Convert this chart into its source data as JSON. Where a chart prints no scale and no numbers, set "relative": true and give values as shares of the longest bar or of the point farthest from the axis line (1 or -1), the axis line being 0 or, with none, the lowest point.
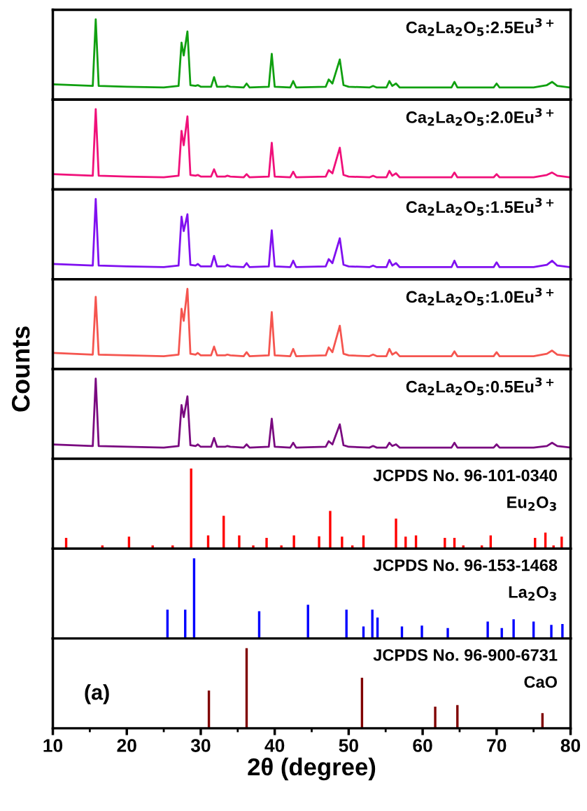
{
  "chart_data": [
    {
      "type": "line",
      "relative": true,
      "xlim": [
        10,
        80
      ],
      "tick_labels": false,
      "annotations": [
        "Ca$_{2}$La$_{2}$O$_{5}$:2.5Eu$^{3+}$"
      ],
      "x": [
        10,
        15.4,
        15.8,
        16.2,
        20,
        25,
        27.0,
        27.4,
        27.7,
        28.2,
        28.6,
        29.3,
        29.6,
        30,
        31.4,
        31.8,
        32.2,
        33.3,
        33.6,
        34,
        35.8,
        36.2,
        36.6,
        39.2,
        39.6,
        40.0,
        42.1,
        42.5,
        42.9,
        46.9,
        47.3,
        47.8,
        48.8,
        49.3,
        50,
        52.8,
        53.3,
        53.8,
        55.1,
        55.5,
        55.9,
        56.4,
        56.9,
        60,
        63.9,
        64.3,
        64.7,
        69.6,
        70.0,
        70.4,
        75,
        76.8,
        77.5,
        78.2,
        80
      ],
      "series": [
        {
          "color": "#10a010",
          "values": [
            0.19,
            0.17,
            1.0,
            0.17,
            0.16,
            0.15,
            0.17,
            0.71,
            0.55,
            0.85,
            0.18,
            0.17,
            0.18,
            0.16,
            0.16,
            0.28,
            0.16,
            0.16,
            0.17,
            0.16,
            0.15,
            0.2,
            0.15,
            0.16,
            0.57,
            0.16,
            0.15,
            0.23,
            0.15,
            0.16,
            0.25,
            0.2,
            0.5,
            0.18,
            0.16,
            0.15,
            0.17,
            0.15,
            0.15,
            0.23,
            0.17,
            0.2,
            0.15,
            0.15,
            0.15,
            0.22,
            0.15,
            0.15,
            0.2,
            0.15,
            0.15,
            0.18,
            0.22,
            0.17,
            0.15
          ]
        }
      ]
    },
    {
      "type": "line",
      "relative": true,
      "xlim": [
        10,
        80
      ],
      "tick_labels": false,
      "annotations": [
        "Ca$_{2}$La$_{2}$O$_{5}$:2.0Eu$^{3+}$"
      ],
      "x": [
        10,
        15.4,
        15.8,
        16.2,
        20,
        25,
        27.0,
        27.4,
        27.7,
        28.2,
        28.6,
        29.3,
        29.6,
        30,
        31.4,
        31.8,
        32.2,
        33.3,
        33.6,
        34,
        35.8,
        36.2,
        36.6,
        39.2,
        39.6,
        40.0,
        42.1,
        42.5,
        42.9,
        46.9,
        47.3,
        47.8,
        48.8,
        49.3,
        50,
        52.8,
        53.3,
        53.8,
        55.1,
        55.5,
        55.9,
        56.4,
        56.9,
        60,
        63.9,
        64.3,
        64.7,
        69.6,
        70.0,
        70.4,
        75,
        76.8,
        77.5,
        78.2,
        80
      ],
      "series": [
        {
          "color": "#f0107a",
          "values": [
            0.19,
            0.17,
            1.0,
            0.17,
            0.16,
            0.15,
            0.17,
            0.73,
            0.55,
            0.91,
            0.18,
            0.17,
            0.18,
            0.16,
            0.16,
            0.25,
            0.16,
            0.16,
            0.17,
            0.16,
            0.15,
            0.19,
            0.15,
            0.16,
            0.58,
            0.16,
            0.15,
            0.22,
            0.15,
            0.16,
            0.24,
            0.2,
            0.52,
            0.18,
            0.16,
            0.15,
            0.17,
            0.15,
            0.15,
            0.23,
            0.17,
            0.2,
            0.15,
            0.15,
            0.15,
            0.21,
            0.15,
            0.15,
            0.19,
            0.15,
            0.15,
            0.18,
            0.21,
            0.17,
            0.15
          ]
        }
      ]
    },
    {
      "type": "line",
      "relative": true,
      "xlim": [
        10,
        80
      ],
      "tick_labels": false,
      "annotations": [
        "Ca$_{2}$La$_{2}$O$_{5}$:1.5Eu$^{3+}$"
      ],
      "x": [
        10,
        15.4,
        15.8,
        16.2,
        20,
        25,
        27.0,
        27.4,
        27.7,
        28.2,
        28.6,
        29.3,
        29.6,
        30,
        31.4,
        31.8,
        32.2,
        33.3,
        33.6,
        34,
        35.8,
        36.2,
        36.6,
        39.2,
        39.6,
        40.0,
        42.1,
        42.5,
        42.9,
        46.9,
        47.3,
        47.8,
        48.8,
        49.3,
        50,
        52.8,
        53.3,
        53.8,
        55.1,
        55.5,
        55.9,
        56.4,
        56.9,
        60,
        63.9,
        64.3,
        64.7,
        69.6,
        70.0,
        70.4,
        75,
        76.8,
        77.5,
        78.2,
        80
      ],
      "series": [
        {
          "color": "#8010f0",
          "values": [
            0.19,
            0.17,
            1.0,
            0.17,
            0.16,
            0.15,
            0.17,
            0.78,
            0.6,
            0.81,
            0.18,
            0.17,
            0.19,
            0.16,
            0.16,
            0.29,
            0.16,
            0.16,
            0.18,
            0.16,
            0.15,
            0.2,
            0.15,
            0.16,
            0.61,
            0.16,
            0.15,
            0.23,
            0.15,
            0.16,
            0.25,
            0.2,
            0.51,
            0.18,
            0.16,
            0.15,
            0.17,
            0.15,
            0.15,
            0.24,
            0.17,
            0.2,
            0.15,
            0.15,
            0.15,
            0.23,
            0.15,
            0.15,
            0.21,
            0.15,
            0.15,
            0.18,
            0.23,
            0.17,
            0.15
          ]
        }
      ]
    },
    {
      "type": "line",
      "relative": true,
      "xlim": [
        10,
        80
      ],
      "tick_labels": false,
      "annotations": [
        "Ca$_{2}$La$_{2}$O$_{5}$:1.0Eu$^{3+}$"
      ],
      "x": [
        10,
        15.4,
        15.8,
        16.2,
        20,
        25,
        27.0,
        27.4,
        27.7,
        28.2,
        28.6,
        29.3,
        29.6,
        30,
        31.4,
        31.8,
        32.2,
        33.3,
        33.6,
        34,
        35.8,
        36.2,
        36.6,
        39.2,
        39.6,
        40.0,
        42.1,
        42.5,
        42.9,
        46.9,
        47.3,
        47.8,
        48.8,
        49.3,
        50,
        52.8,
        53.3,
        53.8,
        55.1,
        55.5,
        55.9,
        56.4,
        56.9,
        60,
        63.9,
        64.3,
        64.7,
        69.6,
        70.0,
        70.4,
        75,
        76.8,
        77.5,
        78.2,
        80
      ],
      "series": [
        {
          "color": "#f5554f",
          "values": [
            0.2,
            0.18,
            0.9,
            0.18,
            0.17,
            0.16,
            0.18,
            0.75,
            0.6,
            1.0,
            0.19,
            0.18,
            0.2,
            0.17,
            0.17,
            0.28,
            0.17,
            0.17,
            0.18,
            0.17,
            0.16,
            0.21,
            0.16,
            0.17,
            0.71,
            0.17,
            0.16,
            0.25,
            0.16,
            0.17,
            0.27,
            0.21,
            0.54,
            0.19,
            0.17,
            0.16,
            0.18,
            0.16,
            0.16,
            0.25,
            0.18,
            0.21,
            0.16,
            0.16,
            0.16,
            0.22,
            0.16,
            0.16,
            0.21,
            0.16,
            0.16,
            0.19,
            0.23,
            0.18,
            0.16
          ]
        }
      ]
    },
    {
      "type": "line",
      "relative": true,
      "xlim": [
        10,
        80
      ],
      "tick_labels": false,
      "ylabel": "Counts",
      "annotations": [
        "Ca$_{2}$La$_{2}$O$_{5}$:0.5Eu$^{3+}$"
      ],
      "x": [
        10,
        15.4,
        15.8,
        16.2,
        20,
        25,
        27.0,
        27.4,
        27.7,
        28.2,
        28.6,
        29.3,
        29.6,
        30,
        31.4,
        31.8,
        32.2,
        33.3,
        33.6,
        34,
        35.8,
        36.2,
        36.6,
        39.2,
        39.6,
        40.0,
        42.1,
        42.5,
        42.9,
        46.9,
        47.3,
        47.8,
        48.8,
        49.3,
        50,
        52.8,
        53.3,
        53.8,
        55.1,
        55.5,
        55.9,
        56.4,
        56.9,
        60,
        63.9,
        64.3,
        64.7,
        69.6,
        70.0,
        70.4,
        75,
        76.8,
        77.5,
        78.2,
        80
      ],
      "series": [
        {
          "color": "#7a0a80",
          "values": [
            0.18,
            0.16,
            1.0,
            0.16,
            0.15,
            0.14,
            0.16,
            0.67,
            0.52,
            0.78,
            0.17,
            0.16,
            0.18,
            0.15,
            0.15,
            0.26,
            0.15,
            0.15,
            0.16,
            0.15,
            0.14,
            0.18,
            0.14,
            0.15,
            0.5,
            0.15,
            0.14,
            0.2,
            0.14,
            0.15,
            0.22,
            0.18,
            0.43,
            0.17,
            0.15,
            0.14,
            0.16,
            0.14,
            0.14,
            0.2,
            0.16,
            0.18,
            0.14,
            0.14,
            0.14,
            0.2,
            0.14,
            0.14,
            0.18,
            0.14,
            0.14,
            0.16,
            0.2,
            0.16,
            0.14
          ]
        }
      ]
    },
    {
      "type": "bar",
      "relative": true,
      "xlim": [
        10,
        80
      ],
      "tick_labels": false,
      "annotations": [
        "JCPDS No. 96-101-0340",
        "Eu$_{2}$O$_{3}$"
      ],
      "x": [
        11.8,
        16.7,
        20.3,
        23.5,
        26.2,
        28.7,
        31.0,
        33.1,
        35.2,
        37.1,
        38.9,
        40.9,
        42.6,
        46.0,
        47.5,
        49.1,
        50.5,
        52.0,
        56.4,
        57.7,
        59.1,
        63.0,
        64.3,
        65.5,
        68.0,
        69.2,
        75.2,
        76.6,
        77.7,
        78.8
      ],
      "series": [
        {
          "color": "#ff0000",
          "values": [
            0.135,
            0.04,
            0.15,
            0.04,
            0.04,
            1.0,
            0.165,
            0.41,
            0.165,
            0.04,
            0.135,
            0.04,
            0.165,
            0.155,
            0.47,
            0.15,
            0.04,
            0.165,
            0.375,
            0.15,
            0.165,
            0.135,
            0.135,
            0.04,
            0.04,
            0.165,
            0.135,
            0.2,
            0.04,
            0.15
          ]
        }
      ]
    },
    {
      "type": "bar",
      "relative": true,
      "xlim": [
        10,
        80
      ],
      "tick_labels": false,
      "annotations": [
        "JCPDS No. 96-153-1468",
        "La$_{2}$O$_{3}$"
      ],
      "x": [
        25.5,
        27.9,
        29.1,
        37.9,
        44.5,
        49.7,
        52.0,
        53.2,
        53.9,
        57.2,
        59.9,
        63.4,
        68.8,
        70.7,
        72.3,
        75.0,
        77.4,
        78.9
      ],
      "series": [
        {
          "color": "#0000ff",
          "values": [
            0.36,
            0.36,
            1.0,
            0.34,
            0.42,
            0.36,
            0.15,
            0.36,
            0.26,
            0.15,
            0.16,
            0.13,
            0.21,
            0.13,
            0.24,
            0.21,
            0.17,
            0.18
          ]
        }
      ]
    },
    {
      "type": "bar",
      "relative": true,
      "xlim": [
        10,
        80
      ],
      "xticks": [
        10,
        20,
        30,
        40,
        50,
        60,
        70,
        80
      ],
      "tick_labels": "x",
      "xlabel": "2θ (degree)",
      "annotations": [
        "JCPDS No. 96-900-6731",
        "CaO",
        "(a)"
      ],
      "x": [
        31.1,
        36.2,
        51.8,
        61.7,
        64.7,
        76.2
      ],
      "series": [
        {
          "color": "#800000",
          "values": [
            0.47,
            1.0,
            0.63,
            0.27,
            0.29,
            0.19
          ]
        }
      ]
    }
  ]
}
